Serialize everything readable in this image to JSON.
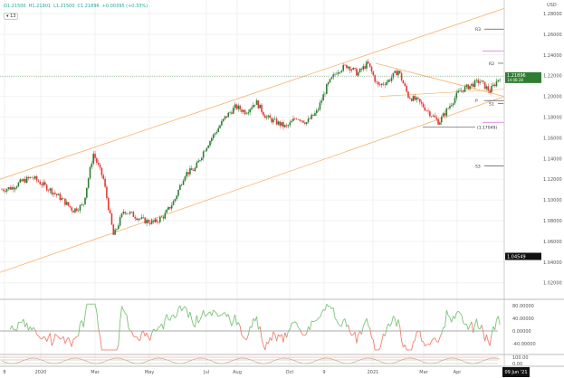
{
  "header": {
    "open": "O1.21500",
    "high": "H1.21901",
    "low": "L1.21500",
    "close": "C1.21896",
    "change": "+0.00395 (+0.33%)",
    "interval": "▾ 13"
  },
  "price_axis": {
    "currency": "USD",
    "last_price": "1.21896",
    "countdown": "14:08:28",
    "crosshair_price": "1.04549"
  },
  "colors": {
    "up": "#2e7d32",
    "down": "#e53935",
    "channel": "#f5b26b",
    "pivot": "#333333",
    "magenta": "#d36fd3",
    "osc_up": "#7cc47a",
    "osc_down": "#f08070"
  },
  "pivots": {
    "r3": "R3",
    "r2": "R2",
    "p": "P",
    "s1": "S1",
    "s3": "S3",
    "fib_label": "(1.17049)"
  },
  "time_axis": {
    "cursor_date": "09 Jun '21",
    "ticks": [
      "8",
      "2020",
      "Mar",
      "May",
      "Jul",
      "Aug",
      "Oct",
      "9",
      "2021",
      "Mar",
      "Apr"
    ]
  },
  "chart_data": {
    "type": "candlestick",
    "ylim": [
      1.0,
      1.29
    ],
    "yticks": [
      "1.28000",
      "1.26000",
      "1.24000",
      "1.22000",
      "1.20000",
      "1.18000",
      "1.16000",
      "1.14000",
      "1.12000",
      "1.10000",
      "1.08000",
      "1.06000",
      "1.04000",
      "1.02000"
    ],
    "close_path": [
      1.11,
      1.112,
      1.118,
      1.122,
      1.115,
      1.108,
      1.1,
      1.09,
      1.095,
      1.145,
      1.12,
      1.065,
      1.09,
      1.085,
      1.08,
      1.078,
      1.085,
      1.1,
      1.125,
      1.13,
      1.15,
      1.165,
      1.18,
      1.19,
      1.185,
      1.195,
      1.18,
      1.175,
      1.17,
      1.18,
      1.175,
      1.185,
      1.21,
      1.225,
      1.23,
      1.222,
      1.232,
      1.21,
      1.215,
      1.225,
      1.2,
      1.195,
      1.185,
      1.175,
      1.19,
      1.205,
      1.21,
      1.215,
      1.205,
      1.219
    ],
    "oscillator": {
      "yticks": [
        "80.00000",
        "40.00000",
        "0.00000",
        "-40.00000"
      ],
      "range": [
        -60,
        90
      ]
    },
    "lower_panel": {
      "yticks": [
        "100.00",
        "0.00"
      ]
    }
  }
}
